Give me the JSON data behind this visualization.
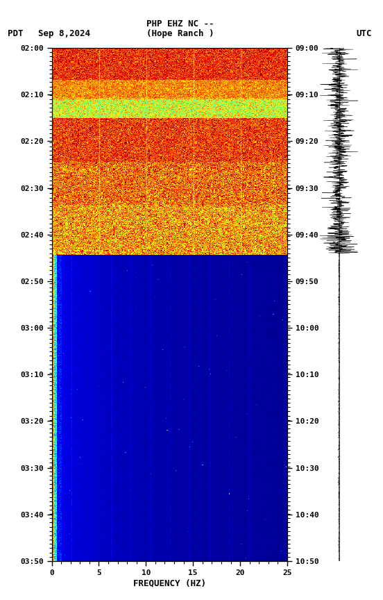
{
  "title_line1": "PHP EHZ NC --",
  "title_line2": "(Hope Ranch )",
  "label_left": "PDT",
  "label_date": "Sep 8,2024",
  "label_right": "UTC",
  "freq_min": 0,
  "freq_max": 25,
  "xlabel": "FREQUENCY (HZ)",
  "xticks": [
    0,
    5,
    10,
    15,
    20,
    25
  ],
  "yticks_pdt": [
    "02:00",
    "02:10",
    "02:20",
    "02:30",
    "02:40",
    "02:50",
    "03:00",
    "03:10",
    "03:20",
    "03:30",
    "03:40",
    "03:50"
  ],
  "yticks_utc": [
    "09:00",
    "09:10",
    "09:20",
    "09:30",
    "09:40",
    "09:50",
    "10:00",
    "10:10",
    "10:20",
    "10:30",
    "10:40",
    "10:50"
  ],
  "n_freq": 300,
  "n_time": 720,
  "transition_row": 290,
  "fig_width": 5.52,
  "fig_height": 8.64,
  "dpi": 100
}
